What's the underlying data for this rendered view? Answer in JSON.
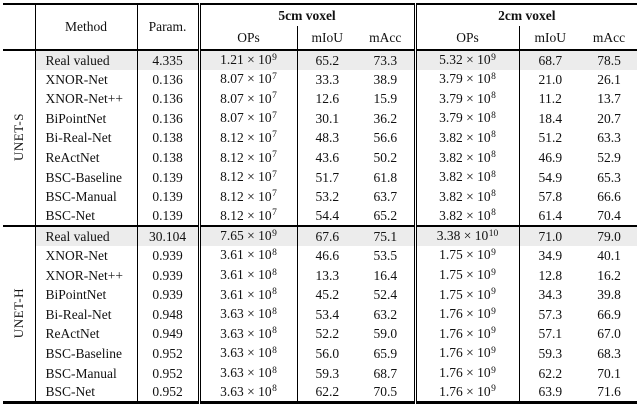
{
  "table": {
    "col_headers": {
      "method": "Method",
      "param": "Param.",
      "group_5cm": "5cm voxel",
      "group_2cm": "2cm voxel",
      "ops": "OPs",
      "miou": "mIoU",
      "macc": "mAcc"
    },
    "colors": {
      "highlight_row_bg": "#ececec",
      "rule": "#000000",
      "text": "#111111"
    },
    "sections": [
      {
        "group": "UNET-S",
        "rows": [
          {
            "method": "Real valued",
            "param": "4.335",
            "ops_5cm": "1.21 × 10^9",
            "miou_5cm": "65.2",
            "macc_5cm": "73.3",
            "ops_2cm": "5.32 × 10^9",
            "miou_2cm": "68.7",
            "macc_2cm": "78.5",
            "highlight": true
          },
          {
            "method": "XNOR-Net",
            "param": "0.136",
            "ops_5cm": "8.07 × 10^7",
            "miou_5cm": "33.3",
            "macc_5cm": "38.9",
            "ops_2cm": "3.79 × 10^8",
            "miou_2cm": "21.0",
            "macc_2cm": "26.1",
            "highlight": false
          },
          {
            "method": "XNOR-Net++",
            "param": "0.136",
            "ops_5cm": "8.07 × 10^7",
            "miou_5cm": "12.6",
            "macc_5cm": "15.9",
            "ops_2cm": "3.79 × 10^8",
            "miou_2cm": "11.2",
            "macc_2cm": "13.7",
            "highlight": false
          },
          {
            "method": "BiPointNet",
            "param": "0.136",
            "ops_5cm": "8.07 × 10^7",
            "miou_5cm": "30.1",
            "macc_5cm": "36.2",
            "ops_2cm": "3.79 × 10^8",
            "miou_2cm": "18.4",
            "macc_2cm": "20.7",
            "highlight": false
          },
          {
            "method": "Bi-Real-Net",
            "param": "0.138",
            "ops_5cm": "8.12 × 10^7",
            "miou_5cm": "48.3",
            "macc_5cm": "56.6",
            "ops_2cm": "3.82 × 10^8",
            "miou_2cm": "51.2",
            "macc_2cm": "63.3",
            "highlight": false
          },
          {
            "method": "ReActNet",
            "param": "0.138",
            "ops_5cm": "8.12 × 10^7",
            "miou_5cm": "43.6",
            "macc_5cm": "50.2",
            "ops_2cm": "3.82 × 10^8",
            "miou_2cm": "46.9",
            "macc_2cm": "52.9",
            "highlight": false
          },
          {
            "method": "BSC-Baseline",
            "param": "0.139",
            "ops_5cm": "8.12 × 10^7",
            "miou_5cm": "51.7",
            "macc_5cm": "61.8",
            "ops_2cm": "3.82 × 10^8",
            "miou_2cm": "54.9",
            "macc_2cm": "65.3",
            "highlight": false
          },
          {
            "method": "BSC-Manual",
            "param": "0.139",
            "ops_5cm": "8.12 × 10^7",
            "miou_5cm": "53.2",
            "macc_5cm": "63.7",
            "ops_2cm": "3.82 × 10^8",
            "miou_2cm": "57.8",
            "macc_2cm": "66.6",
            "highlight": false
          },
          {
            "method": "BSC-Net",
            "param": "0.139",
            "ops_5cm": "8.12 × 10^7",
            "miou_5cm": "54.4",
            "macc_5cm": "65.2",
            "ops_2cm": "3.82 × 10^8",
            "miou_2cm": "61.4",
            "macc_2cm": "70.4",
            "highlight": false
          }
        ]
      },
      {
        "group": "UNET-H",
        "rows": [
          {
            "method": "Real valued",
            "param": "30.104",
            "ops_5cm": "7.65 × 10^9",
            "miou_5cm": "67.6",
            "macc_5cm": "75.1",
            "ops_2cm": "3.38 × 10^10",
            "miou_2cm": "71.0",
            "macc_2cm": "79.0",
            "highlight": true
          },
          {
            "method": "XNOR-Net",
            "param": "0.939",
            "ops_5cm": "3.61 × 10^8",
            "miou_5cm": "46.6",
            "macc_5cm": "53.5",
            "ops_2cm": "1.75 × 10^9",
            "miou_2cm": "34.9",
            "macc_2cm": "40.1",
            "highlight": false
          },
          {
            "method": "XNOR-Net++",
            "param": "0.939",
            "ops_5cm": "3.61 × 10^8",
            "miou_5cm": "13.3",
            "macc_5cm": "16.4",
            "ops_2cm": "1.75 × 10^9",
            "miou_2cm": "12.8",
            "macc_2cm": "16.2",
            "highlight": false
          },
          {
            "method": "BiPointNet",
            "param": "0.939",
            "ops_5cm": "3.61 × 10^8",
            "miou_5cm": "45.2",
            "macc_5cm": "52.4",
            "ops_2cm": "1.75 × 10^9",
            "miou_2cm": "34.3",
            "macc_2cm": "39.8",
            "highlight": false
          },
          {
            "method": "Bi-Real-Net",
            "param": "0.948",
            "ops_5cm": "3.63 × 10^8",
            "miou_5cm": "53.4",
            "macc_5cm": "63.2",
            "ops_2cm": "1.76 × 10^9",
            "miou_2cm": "57.3",
            "macc_2cm": "66.9",
            "highlight": false
          },
          {
            "method": "ReActNet",
            "param": "0.949",
            "ops_5cm": "3.63 × 10^8",
            "miou_5cm": "52.2",
            "macc_5cm": "59.0",
            "ops_2cm": "1.76 × 10^9",
            "miou_2cm": "57.1",
            "macc_2cm": "67.0",
            "highlight": false
          },
          {
            "method": "BSC-Baseline",
            "param": "0.952",
            "ops_5cm": "3.63 × 10^8",
            "miou_5cm": "56.0",
            "macc_5cm": "65.9",
            "ops_2cm": "1.76 × 10^9",
            "miou_2cm": "59.3",
            "macc_2cm": "68.3",
            "highlight": false
          },
          {
            "method": "BSC-Manual",
            "param": "0.952",
            "ops_5cm": "3.63 × 10^8",
            "miou_5cm": "59.3",
            "macc_5cm": "68.7",
            "ops_2cm": "1.76 × 10^9",
            "miou_2cm": "62.2",
            "macc_2cm": "70.1",
            "highlight": false
          },
          {
            "method": "BSC-Net",
            "param": "0.952",
            "ops_5cm": "3.63 × 10^8",
            "miou_5cm": "62.2",
            "macc_5cm": "70.5",
            "ops_2cm": "1.76 × 10^9",
            "miou_2cm": "63.9",
            "macc_2cm": "71.6",
            "highlight": false
          }
        ]
      }
    ]
  }
}
